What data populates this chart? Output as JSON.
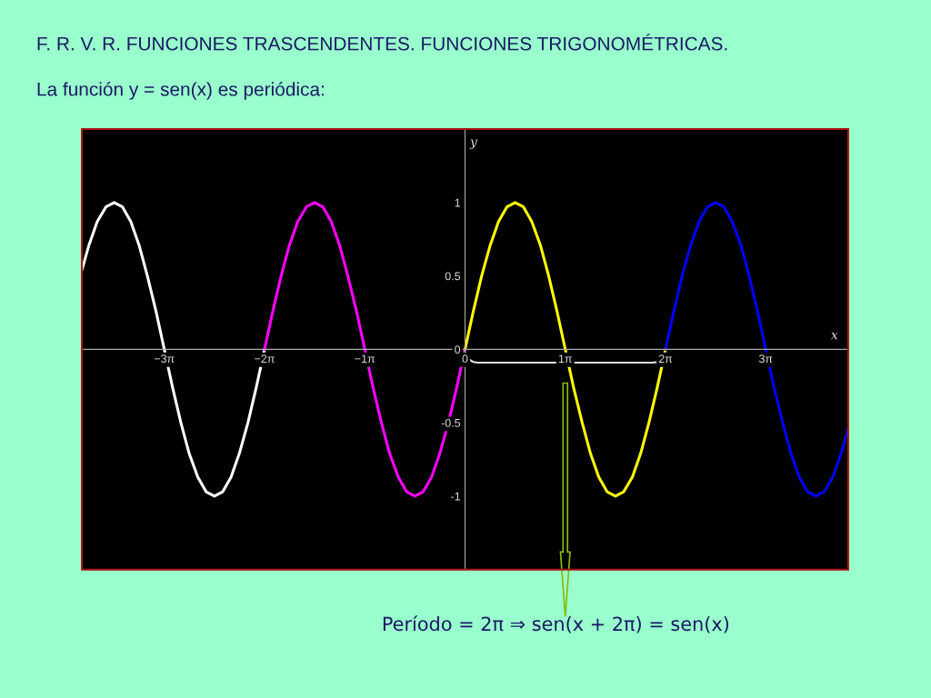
{
  "chart_data": {
    "type": "line",
    "title": "F. R. V. R. FUNCIONES TRASCENDENTES. FUNCIONES TRIGONOMÉTRICAS.",
    "subtitle": "La función y = sen(x) es periódica:",
    "xlabel": "x",
    "ylabel": "y",
    "xlim": [
      -12.0,
      12.0
    ],
    "ylim": [
      -1.5,
      1.5
    ],
    "xticks": [
      {
        "value": -9.42,
        "label": "−3π"
      },
      {
        "value": -6.28,
        "label": "−2π"
      },
      {
        "value": -3.14,
        "label": "−1π"
      },
      {
        "value": 0,
        "label": "0"
      },
      {
        "value": 3.14,
        "label": "1π"
      },
      {
        "value": 6.28,
        "label": "2π"
      },
      {
        "value": 9.42,
        "label": "3π"
      }
    ],
    "yticks": [
      1,
      0.5,
      0,
      -0.5,
      -1
    ],
    "grid": false,
    "annotations": [
      "Período = 2π ⇒ sen(x + 2π) = sen(x)"
    ],
    "series": [
      {
        "color": "#ffffff",
        "x": [
          -12.0,
          -11.78,
          -11.52,
          -11.25,
          -10.99,
          -10.73,
          -10.47,
          -10.21,
          -9.95,
          -9.68,
          -9.42,
          -9.16,
          -8.9,
          -8.64,
          -8.37,
          -8.11,
          -7.85,
          -7.59,
          -7.33,
          -7.07,
          -6.8,
          -6.54,
          -6.28
        ],
        "values": [
          0.54,
          0.71,
          0.87,
          0.97,
          1,
          0.97,
          0.87,
          0.71,
          0.5,
          0.26,
          0,
          -0.26,
          -0.5,
          -0.71,
          -0.87,
          -0.97,
          -1,
          -0.97,
          -0.87,
          -0.71,
          -0.5,
          -0.26,
          0
        ]
      },
      {
        "color": "#ff00ff",
        "x": [
          -6.28,
          -6.02,
          -5.76,
          -5.5,
          -5.24,
          -4.97,
          -4.71,
          -4.45,
          -4.19,
          -3.93,
          -3.67,
          -3.4,
          -3.14,
          -2.88,
          -2.62,
          -2.36,
          -2.09,
          -1.83,
          -1.57,
          -1.31,
          -1.05,
          -0.79,
          -0.52,
          -0.26,
          0
        ],
        "values": [
          0,
          0.26,
          0.5,
          0.71,
          0.87,
          0.97,
          1,
          0.97,
          0.87,
          0.71,
          0.5,
          0.26,
          0,
          -0.26,
          -0.5,
          -0.71,
          -0.87,
          -0.97,
          -1,
          -0.97,
          -0.87,
          -0.71,
          -0.5,
          -0.26,
          0
        ]
      },
      {
        "color": "#ffff00",
        "x": [
          0,
          0.26,
          0.52,
          0.79,
          1.05,
          1.31,
          1.57,
          1.83,
          2.09,
          2.36,
          2.62,
          2.88,
          3.14,
          3.4,
          3.67,
          3.93,
          4.19,
          4.45,
          4.71,
          4.97,
          5.24,
          5.5,
          5.76,
          6.02,
          6.28
        ],
        "values": [
          0,
          0.26,
          0.5,
          0.71,
          0.87,
          0.97,
          1,
          0.97,
          0.87,
          0.71,
          0.5,
          0.26,
          0,
          -0.26,
          -0.5,
          -0.71,
          -0.87,
          -0.97,
          -1,
          -0.97,
          -0.87,
          -0.71,
          -0.5,
          -0.26,
          0
        ]
      },
      {
        "color": "#0000ff",
        "x": [
          6.28,
          6.54,
          6.8,
          7.07,
          7.33,
          7.59,
          7.85,
          8.11,
          8.37,
          8.64,
          8.9,
          9.16,
          9.42,
          9.68,
          9.95,
          10.21,
          10.47,
          10.73,
          10.99,
          11.25,
          11.52,
          11.78,
          12.0
        ],
        "values": [
          0,
          0.26,
          0.5,
          0.71,
          0.87,
          0.97,
          1,
          0.97,
          0.87,
          0.71,
          0.5,
          0.26,
          0,
          -0.26,
          -0.5,
          -0.71,
          -0.87,
          -0.97,
          -1,
          -0.97,
          -0.87,
          -0.71,
          -0.54
        ]
      }
    ]
  }
}
